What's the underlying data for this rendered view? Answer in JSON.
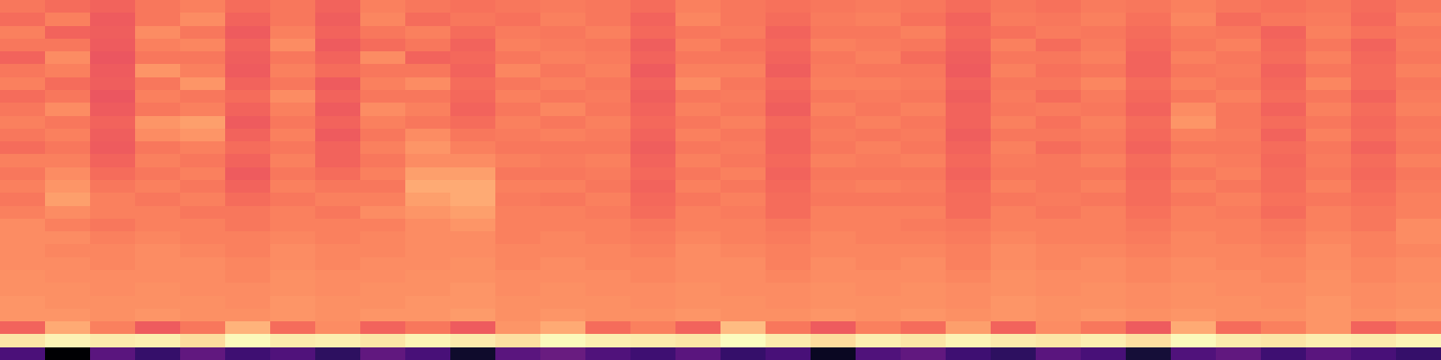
{
  "chart_data": {
    "type": "heatmap",
    "color": "magma",
    "tick_labels": false,
    "cells": [
      [
        0.7,
        0.68,
        0.66,
        0.7,
        0.72,
        0.68,
        0.7,
        0.66,
        0.72,
        0.7,
        0.69,
        0.7,
        0.71,
        0.7,
        0.68,
        0.72,
        0.7,
        0.69,
        0.7,
        0.71,
        0.7,
        0.68,
        0.7,
        0.69,
        0.71,
        0.7,
        0.72,
        0.7,
        0.69,
        0.7,
        0.68,
        0.7
      ],
      [
        0.68,
        0.72,
        0.64,
        0.7,
        0.74,
        0.66,
        0.7,
        0.65,
        0.73,
        0.68,
        0.7,
        0.69,
        0.72,
        0.7,
        0.66,
        0.73,
        0.7,
        0.68,
        0.71,
        0.72,
        0.69,
        0.66,
        0.71,
        0.7,
        0.72,
        0.69,
        0.73,
        0.68,
        0.7,
        0.71,
        0.67,
        0.72
      ],
      [
        0.72,
        0.66,
        0.65,
        0.74,
        0.7,
        0.64,
        0.72,
        0.66,
        0.7,
        0.72,
        0.68,
        0.71,
        0.7,
        0.72,
        0.67,
        0.7,
        0.71,
        0.66,
        0.7,
        0.7,
        0.72,
        0.67,
        0.69,
        0.71,
        0.7,
        0.68,
        0.71,
        0.7,
        0.66,
        0.72,
        0.69,
        0.7
      ],
      [
        0.7,
        0.7,
        0.64,
        0.72,
        0.73,
        0.66,
        0.74,
        0.64,
        0.68,
        0.7,
        0.66,
        0.72,
        0.71,
        0.7,
        0.65,
        0.72,
        0.69,
        0.67,
        0.72,
        0.71,
        0.7,
        0.66,
        0.72,
        0.68,
        0.71,
        0.67,
        0.7,
        0.72,
        0.67,
        0.7,
        0.66,
        0.71
      ],
      [
        0.66,
        0.74,
        0.63,
        0.7,
        0.7,
        0.65,
        0.7,
        0.66,
        0.74,
        0.66,
        0.67,
        0.7,
        0.72,
        0.71,
        0.66,
        0.7,
        0.7,
        0.66,
        0.7,
        0.72,
        0.68,
        0.65,
        0.7,
        0.7,
        0.72,
        0.66,
        0.72,
        0.7,
        0.68,
        0.72,
        0.67,
        0.7
      ],
      [
        0.7,
        0.72,
        0.64,
        0.76,
        0.72,
        0.64,
        0.72,
        0.68,
        0.7,
        0.7,
        0.66,
        0.73,
        0.7,
        0.72,
        0.64,
        0.72,
        0.72,
        0.65,
        0.71,
        0.7,
        0.7,
        0.64,
        0.72,
        0.69,
        0.7,
        0.66,
        0.7,
        0.71,
        0.66,
        0.7,
        0.68,
        0.72
      ],
      [
        0.72,
        0.68,
        0.65,
        0.7,
        0.76,
        0.66,
        0.7,
        0.64,
        0.72,
        0.74,
        0.68,
        0.7,
        0.72,
        0.7,
        0.66,
        0.74,
        0.7,
        0.67,
        0.72,
        0.72,
        0.71,
        0.66,
        0.7,
        0.7,
        0.73,
        0.68,
        0.72,
        0.7,
        0.67,
        0.73,
        0.68,
        0.7
      ],
      [
        0.68,
        0.7,
        0.63,
        0.72,
        0.7,
        0.68,
        0.74,
        0.66,
        0.7,
        0.7,
        0.67,
        0.72,
        0.7,
        0.71,
        0.65,
        0.7,
        0.71,
        0.66,
        0.7,
        0.71,
        0.7,
        0.65,
        0.71,
        0.68,
        0.71,
        0.67,
        0.7,
        0.72,
        0.68,
        0.7,
        0.66,
        0.71
      ],
      [
        0.7,
        0.74,
        0.64,
        0.7,
        0.72,
        0.66,
        0.72,
        0.64,
        0.74,
        0.72,
        0.66,
        0.7,
        0.73,
        0.7,
        0.66,
        0.72,
        0.7,
        0.65,
        0.72,
        0.7,
        0.72,
        0.66,
        0.7,
        0.71,
        0.7,
        0.66,
        0.74,
        0.7,
        0.66,
        0.72,
        0.68,
        0.72
      ],
      [
        0.72,
        0.7,
        0.66,
        0.76,
        0.78,
        0.64,
        0.7,
        0.66,
        0.72,
        0.7,
        0.68,
        0.72,
        0.7,
        0.72,
        0.67,
        0.7,
        0.72,
        0.67,
        0.7,
        0.72,
        0.7,
        0.66,
        0.72,
        0.69,
        0.72,
        0.68,
        0.76,
        0.7,
        0.68,
        0.7,
        0.67,
        0.7
      ],
      [
        0.7,
        0.72,
        0.65,
        0.74,
        0.76,
        0.66,
        0.72,
        0.64,
        0.7,
        0.74,
        0.7,
        0.71,
        0.72,
        0.71,
        0.66,
        0.72,
        0.7,
        0.66,
        0.71,
        0.7,
        0.71,
        0.65,
        0.7,
        0.7,
        0.71,
        0.67,
        0.72,
        0.71,
        0.66,
        0.72,
        0.68,
        0.71
      ],
      [
        0.68,
        0.7,
        0.64,
        0.7,
        0.72,
        0.68,
        0.7,
        0.66,
        0.72,
        0.76,
        0.72,
        0.7,
        0.7,
        0.7,
        0.65,
        0.7,
        0.71,
        0.66,
        0.7,
        0.72,
        0.7,
        0.66,
        0.72,
        0.68,
        0.7,
        0.66,
        0.7,
        0.7,
        0.68,
        0.7,
        0.66,
        0.7
      ],
      [
        0.72,
        0.72,
        0.66,
        0.72,
        0.7,
        0.66,
        0.72,
        0.66,
        0.7,
        0.74,
        0.74,
        0.72,
        0.71,
        0.72,
        0.66,
        0.72,
        0.7,
        0.67,
        0.72,
        0.71,
        0.72,
        0.67,
        0.71,
        0.7,
        0.72,
        0.68,
        0.72,
        0.71,
        0.67,
        0.71,
        0.68,
        0.72
      ],
      [
        0.7,
        0.74,
        0.68,
        0.7,
        0.72,
        0.64,
        0.7,
        0.68,
        0.72,
        0.78,
        0.78,
        0.7,
        0.7,
        0.71,
        0.67,
        0.7,
        0.72,
        0.66,
        0.7,
        0.7,
        0.7,
        0.66,
        0.7,
        0.7,
        0.7,
        0.67,
        0.7,
        0.72,
        0.68,
        0.7,
        0.67,
        0.7
      ],
      [
        0.72,
        0.76,
        0.7,
        0.72,
        0.7,
        0.66,
        0.72,
        0.7,
        0.7,
        0.8,
        0.8,
        0.72,
        0.72,
        0.7,
        0.66,
        0.72,
        0.7,
        0.67,
        0.71,
        0.72,
        0.71,
        0.67,
        0.72,
        0.7,
        0.72,
        0.68,
        0.72,
        0.7,
        0.68,
        0.72,
        0.68,
        0.71
      ],
      [
        0.7,
        0.78,
        0.72,
        0.7,
        0.72,
        0.68,
        0.7,
        0.72,
        0.72,
        0.78,
        0.8,
        0.71,
        0.7,
        0.72,
        0.67,
        0.7,
        0.72,
        0.68,
        0.7,
        0.7,
        0.7,
        0.68,
        0.7,
        0.71,
        0.7,
        0.68,
        0.7,
        0.72,
        0.69,
        0.7,
        0.69,
        0.72
      ],
      [
        0.72,
        0.74,
        0.72,
        0.72,
        0.7,
        0.7,
        0.72,
        0.7,
        0.74,
        0.76,
        0.78,
        0.72,
        0.72,
        0.71,
        0.68,
        0.72,
        0.71,
        0.68,
        0.72,
        0.72,
        0.72,
        0.68,
        0.72,
        0.7,
        0.72,
        0.69,
        0.72,
        0.71,
        0.68,
        0.72,
        0.7,
        0.72
      ],
      [
        0.74,
        0.72,
        0.7,
        0.72,
        0.72,
        0.7,
        0.72,
        0.72,
        0.72,
        0.74,
        0.76,
        0.72,
        0.72,
        0.72,
        0.7,
        0.72,
        0.72,
        0.7,
        0.72,
        0.72,
        0.71,
        0.7,
        0.72,
        0.72,
        0.72,
        0.7,
        0.72,
        0.72,
        0.7,
        0.72,
        0.7,
        0.74
      ],
      [
        0.74,
        0.74,
        0.72,
        0.73,
        0.72,
        0.72,
        0.73,
        0.72,
        0.73,
        0.74,
        0.74,
        0.72,
        0.73,
        0.72,
        0.71,
        0.73,
        0.72,
        0.71,
        0.73,
        0.72,
        0.72,
        0.71,
        0.73,
        0.72,
        0.72,
        0.71,
        0.73,
        0.72,
        0.71,
        0.73,
        0.72,
        0.74
      ],
      [
        0.74,
        0.73,
        0.73,
        0.74,
        0.73,
        0.72,
        0.74,
        0.73,
        0.73,
        0.74,
        0.74,
        0.73,
        0.73,
        0.73,
        0.72,
        0.74,
        0.73,
        0.72,
        0.73,
        0.73,
        0.73,
        0.72,
        0.74,
        0.73,
        0.73,
        0.72,
        0.73,
        0.73,
        0.72,
        0.74,
        0.72,
        0.73
      ],
      [
        0.74,
        0.74,
        0.73,
        0.74,
        0.74,
        0.73,
        0.74,
        0.73,
        0.74,
        0.74,
        0.75,
        0.73,
        0.74,
        0.73,
        0.73,
        0.74,
        0.74,
        0.72,
        0.74,
        0.73,
        0.74,
        0.72,
        0.74,
        0.73,
        0.74,
        0.73,
        0.74,
        0.73,
        0.73,
        0.74,
        0.73,
        0.74
      ],
      [
        0.75,
        0.74,
        0.74,
        0.74,
        0.74,
        0.73,
        0.75,
        0.74,
        0.74,
        0.75,
        0.75,
        0.74,
        0.74,
        0.74,
        0.73,
        0.74,
        0.74,
        0.73,
        0.74,
        0.74,
        0.74,
        0.73,
        0.75,
        0.74,
        0.74,
        0.73,
        0.74,
        0.74,
        0.73,
        0.75,
        0.73,
        0.74
      ],
      [
        0.75,
        0.75,
        0.74,
        0.75,
        0.74,
        0.74,
        0.75,
        0.74,
        0.75,
        0.75,
        0.76,
        0.74,
        0.75,
        0.74,
        0.74,
        0.75,
        0.74,
        0.74,
        0.75,
        0.74,
        0.75,
        0.74,
        0.75,
        0.74,
        0.75,
        0.74,
        0.75,
        0.74,
        0.74,
        0.75,
        0.74,
        0.75
      ],
      [
        0.76,
        0.75,
        0.75,
        0.75,
        0.75,
        0.74,
        0.76,
        0.75,
        0.75,
        0.76,
        0.76,
        0.75,
        0.75,
        0.75,
        0.74,
        0.75,
        0.75,
        0.74,
        0.75,
        0.75,
        0.75,
        0.74,
        0.76,
        0.75,
        0.75,
        0.74,
        0.75,
        0.75,
        0.74,
        0.76,
        0.74,
        0.75
      ],
      [
        0.76,
        0.76,
        0.75,
        0.76,
        0.75,
        0.75,
        0.76,
        0.75,
        0.76,
        0.76,
        0.77,
        0.75,
        0.76,
        0.75,
        0.75,
        0.76,
        0.75,
        0.75,
        0.76,
        0.75,
        0.76,
        0.75,
        0.76,
        0.75,
        0.76,
        0.75,
        0.76,
        0.75,
        0.75,
        0.76,
        0.75,
        0.76
      ],
      [
        0.66,
        0.8,
        0.72,
        0.64,
        0.7,
        0.82,
        0.68,
        0.74,
        0.66,
        0.7,
        0.64,
        0.76,
        0.8,
        0.68,
        0.72,
        0.66,
        0.84,
        0.7,
        0.64,
        0.72,
        0.68,
        0.78,
        0.66,
        0.74,
        0.7,
        0.64,
        0.8,
        0.68,
        0.72,
        0.76,
        0.66,
        0.7
      ],
      [
        0.92,
        0.95,
        0.93,
        0.94,
        0.9,
        0.96,
        0.93,
        0.94,
        0.92,
        0.95,
        0.93,
        0.91,
        0.96,
        0.94,
        0.93,
        0.92,
        0.97,
        0.93,
        0.9,
        0.94,
        0.92,
        0.95,
        0.93,
        0.92,
        0.94,
        0.91,
        0.96,
        0.93,
        0.92,
        0.94,
        0.93,
        0.95
      ],
      [
        0.25,
        0.02,
        0.28,
        0.2,
        0.3,
        0.22,
        0.26,
        0.18,
        0.3,
        0.24,
        0.1,
        0.28,
        0.32,
        0.26,
        0.22,
        0.28,
        0.2,
        0.24,
        0.08,
        0.26,
        0.3,
        0.22,
        0.18,
        0.28,
        0.24,
        0.12,
        0.26,
        0.3,
        0.22,
        0.28,
        0.24,
        0.2
      ]
    ]
  }
}
